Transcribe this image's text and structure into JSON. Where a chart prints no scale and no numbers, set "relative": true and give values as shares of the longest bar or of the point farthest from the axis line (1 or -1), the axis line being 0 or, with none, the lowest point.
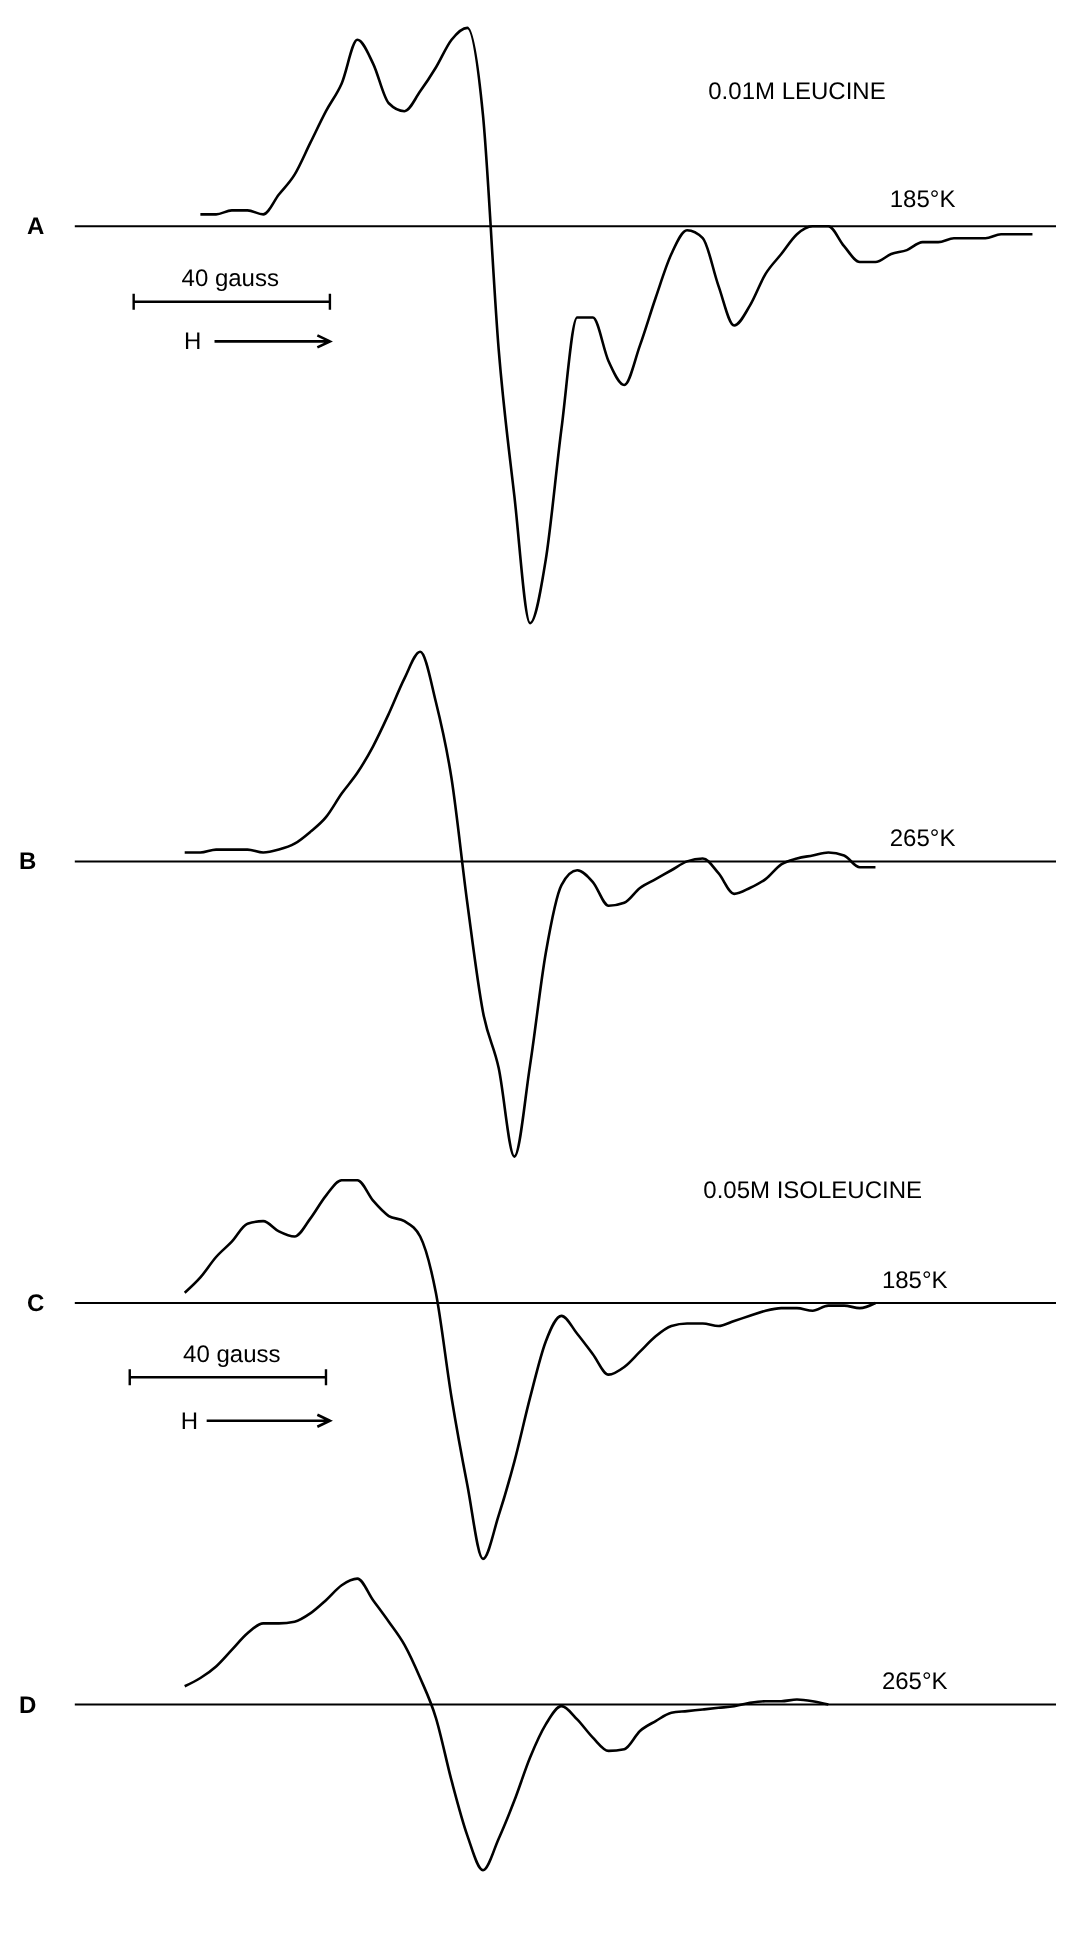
{
  "chart_data": [
    {
      "type": "line",
      "relative": true,
      "title": "0.01M LEUCINE",
      "annotations": [
        "A",
        "185°K",
        "40 gauss",
        "H"
      ],
      "color": "#000000",
      "categories": [
        null,
        null,
        null,
        null,
        null,
        null,
        null,
        null,
        null,
        null,
        null,
        null,
        null,
        null,
        null,
        null,
        null,
        null,
        null,
        null,
        null,
        null,
        null,
        null,
        null,
        null,
        null,
        null,
        null,
        null,
        null,
        null,
        null,
        null,
        null,
        null,
        null,
        null,
        null,
        null,
        null,
        null,
        null,
        null,
        null,
        null,
        null,
        null,
        null,
        null,
        null,
        null,
        null,
        null,
        null,
        null
      ],
      "values": [
        null,
        0.03,
        0.03,
        0.04,
        0.04,
        0.03,
        0.08,
        0.13,
        0.21,
        0.29,
        0.36,
        0.47,
        0.41,
        0.31,
        0.29,
        0.34,
        0.4,
        0.47,
        0.5,
        0.28,
        -0.31,
        -0.68,
        -1.0,
        -0.84,
        -0.51,
        -0.23,
        -0.23,
        -0.34,
        -0.4,
        -0.3,
        -0.18,
        -0.07,
        -0.01,
        -0.03,
        -0.15,
        -0.25,
        -0.2,
        -0.12,
        -0.07,
        -0.02,
        0.0,
        0.0,
        -0.05,
        -0.09,
        -0.09,
        -0.07,
        -0.06,
        -0.04,
        -0.04,
        -0.03,
        -0.03,
        -0.03,
        -0.02,
        -0.02,
        -0.02,
        null
      ]
    },
    {
      "type": "line",
      "relative": true,
      "annotations": [
        "B",
        "265°K"
      ],
      "color": "#000000",
      "categories": [
        null,
        null,
        null,
        null,
        null,
        null,
        null,
        null,
        null,
        null,
        null,
        null,
        null,
        null,
        null,
        null,
        null,
        null,
        null,
        null,
        null,
        null,
        null,
        null,
        null,
        null,
        null,
        null,
        null,
        null,
        null,
        null,
        null,
        null,
        null,
        null,
        null,
        null,
        null,
        null,
        null,
        null,
        null,
        null,
        null,
        null,
        null,
        null,
        null,
        null,
        null,
        null,
        null,
        null,
        null,
        null
      ],
      "values": [
        0.03,
        0.03,
        0.04,
        0.04,
        0.04,
        0.03,
        0.04,
        0.06,
        0.1,
        0.15,
        0.23,
        0.3,
        0.39,
        0.5,
        0.62,
        0.71,
        0.54,
        0.28,
        -0.14,
        -0.51,
        -0.7,
        -1.0,
        -0.69,
        -0.31,
        -0.08,
        -0.03,
        -0.07,
        -0.15,
        -0.14,
        -0.09,
        -0.06,
        -0.03,
        0.0,
        0.01,
        -0.04,
        -0.11,
        -0.09,
        -0.06,
        -0.01,
        0.01,
        0.02,
        0.03,
        0.02,
        -0.02,
        -0.02,
        null,
        null,
        null,
        null,
        null,
        null,
        null,
        null,
        null,
        null,
        null
      ]
    },
    {
      "type": "line",
      "relative": true,
      "title": "0.05M ISOLEUCINE",
      "annotations": [
        "C",
        "185°K",
        "40 gauss",
        "H"
      ],
      "color": "#000000",
      "categories": [
        null,
        null,
        null,
        null,
        null,
        null,
        null,
        null,
        null,
        null,
        null,
        null,
        null,
        null,
        null,
        null,
        null,
        null,
        null,
        null,
        null,
        null,
        null,
        null,
        null,
        null,
        null,
        null,
        null,
        null,
        null,
        null,
        null,
        null,
        null,
        null,
        null,
        null,
        null,
        null,
        null,
        null,
        null,
        null,
        null,
        null,
        null,
        null,
        null,
        null,
        null,
        null,
        null,
        null,
        null,
        null
      ],
      "values": [
        0.04,
        0.1,
        0.18,
        0.24,
        0.31,
        0.32,
        0.28,
        0.26,
        0.33,
        0.42,
        0.48,
        0.48,
        0.4,
        0.34,
        0.32,
        0.26,
        0.04,
        -0.37,
        -0.71,
        -1.0,
        -0.83,
        -0.62,
        -0.37,
        -0.15,
        -0.05,
        -0.12,
        -0.2,
        -0.28,
        -0.25,
        -0.19,
        -0.13,
        -0.09,
        -0.08,
        -0.08,
        -0.09,
        -0.07,
        -0.05,
        -0.03,
        -0.02,
        -0.02,
        -0.03,
        -0.01,
        -0.01,
        -0.02,
        0.0,
        null,
        null,
        null,
        null,
        null,
        null,
        null,
        null,
        null,
        null,
        null
      ]
    },
    {
      "type": "line",
      "relative": true,
      "annotations": [
        "D",
        "265°K"
      ],
      "color": "#000000",
      "categories": [
        null,
        null,
        null,
        null,
        null,
        null,
        null,
        null,
        null,
        null,
        null,
        null,
        null,
        null,
        null,
        null,
        null,
        null,
        null,
        null,
        null,
        null,
        null,
        null,
        null,
        null,
        null,
        null,
        null,
        null,
        null,
        null,
        null,
        null,
        null,
        null,
        null,
        null,
        null,
        null,
        null,
        null,
        null,
        null,
        null,
        null,
        null,
        null,
        null,
        null,
        null,
        null,
        null,
        null,
        null,
        null
      ],
      "values": [
        0.11,
        0.16,
        0.23,
        0.33,
        0.43,
        0.49,
        0.49,
        0.5,
        0.55,
        0.63,
        0.72,
        0.76,
        0.63,
        0.5,
        0.36,
        0.16,
        -0.08,
        -0.46,
        -0.79,
        -1.0,
        -0.81,
        -0.58,
        -0.32,
        -0.12,
        -0.01,
        -0.09,
        -0.2,
        -0.28,
        -0.27,
        -0.16,
        -0.1,
        -0.05,
        -0.04,
        -0.03,
        -0.02,
        -0.01,
        0.01,
        0.02,
        0.02,
        0.03,
        0.02,
        0.0,
        null,
        null,
        null,
        null,
        null,
        null,
        null,
        null,
        null,
        null,
        null,
        null,
        null,
        null
      ]
    }
  ]
}
